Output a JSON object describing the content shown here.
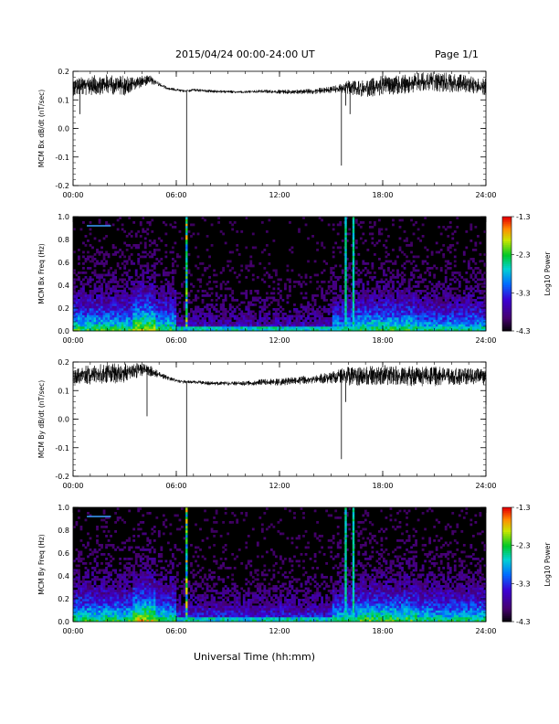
{
  "header": {
    "title": "2015/04/24  00:00-24:00 UT",
    "page": "Page 1/1"
  },
  "footer": {
    "xlabel": "Universal Time (hh:mm)"
  },
  "chart_data": [
    {
      "type": "line",
      "ylabel": "MCM Bx dB/dt (nT/sec)",
      "xlabel": "Universal Time (hh:mm)",
      "xlim": [
        0,
        24
      ],
      "ylim": [
        -0.2,
        0.2
      ],
      "x_ticks": [
        "00:00",
        "06:00",
        "12:00",
        "18:00",
        "24:00"
      ],
      "y_ticks": [
        "-0.2",
        "-0.1",
        "0.0",
        "0.1",
        "0.2"
      ],
      "series": [
        {
          "x": [
            0,
            1,
            2,
            3,
            4,
            4.5,
            5,
            5.5,
            6,
            6.5,
            7,
            8,
            9,
            10,
            11,
            12,
            13,
            14,
            15,
            15.5,
            16,
            16.5,
            17,
            18,
            19,
            20,
            21,
            22,
            23,
            24
          ],
          "y": [
            0.145,
            0.15,
            0.155,
            0.15,
            0.165,
            0.17,
            0.155,
            0.14,
            0.135,
            0.13,
            0.135,
            0.13,
            0.128,
            0.128,
            0.13,
            0.128,
            0.128,
            0.13,
            0.135,
            0.14,
            0.145,
            0.14,
            0.14,
            0.15,
            0.15,
            0.16,
            0.165,
            0.16,
            0.155,
            0.145
          ],
          "amplitude": [
            0.03,
            0.035,
            0.035,
            0.035,
            0.02,
            0.015,
            0.008,
            0.005,
            0.005,
            0.005,
            0.005,
            0.005,
            0.005,
            0.005,
            0.006,
            0.007,
            0.008,
            0.01,
            0.012,
            0.015,
            0.025,
            0.03,
            0.03,
            0.035,
            0.035,
            0.035,
            0.035,
            0.035,
            0.03,
            0.03
          ]
        }
      ],
      "spikes": [
        {
          "x": 6.6,
          "y": -0.2
        },
        {
          "x": 15.6,
          "y": -0.13
        },
        {
          "x": 15.85,
          "y": 0.08
        },
        {
          "x": 16.1,
          "y": 0.05
        },
        {
          "x": 0.4,
          "y": 0.05
        }
      ]
    },
    {
      "type": "heatmap",
      "ylabel": "MCM Bx Freq (Hz)",
      "colorbar_label": "Log10 Power",
      "xlim": [
        0,
        24
      ],
      "ylim": [
        0,
        1.0
      ],
      "x_ticks": [
        "00:00",
        "06:00",
        "12:00",
        "18:00",
        "24:00"
      ],
      "y_ticks": [
        "0.0",
        "0.2",
        "0.4",
        "0.6",
        "0.8",
        "1.0"
      ],
      "colorbar_ticks": [
        "-1.3",
        "-2.3",
        "-3.3",
        "-4.3"
      ],
      "clim": [
        -4.3,
        -1.3
      ],
      "vertical_bands": [
        6.6,
        15.85,
        16.3
      ],
      "horizontal_line": {
        "x": [
          0.8,
          2.2
        ],
        "y": 0.92
      },
      "activity": [
        {
          "x": [
            0,
            6
          ],
          "strength": 0.8
        },
        {
          "x": [
            6,
            15
          ],
          "strength": 0.35
        },
        {
          "x": [
            15,
            24
          ],
          "strength": 0.7
        }
      ]
    },
    {
      "type": "line",
      "ylabel": "MCM By dB/dt (nT/sec)",
      "xlabel": "Universal Time (hh:mm)",
      "xlim": [
        0,
        24
      ],
      "ylim": [
        -0.2,
        0.2
      ],
      "x_ticks": [
        "00:00",
        "06:00",
        "12:00",
        "18:00",
        "24:00"
      ],
      "y_ticks": [
        "-0.2",
        "-0.1",
        "0.0",
        "0.1",
        "0.2"
      ],
      "series": [
        {
          "x": [
            0,
            1,
            2,
            3,
            4,
            4.5,
            5,
            5.5,
            6,
            6.5,
            7,
            8,
            9,
            10,
            11,
            12,
            13,
            14,
            15,
            15.5,
            16,
            16.5,
            17,
            18,
            19,
            20,
            21,
            22,
            23,
            24
          ],
          "y": [
            0.15,
            0.155,
            0.16,
            0.16,
            0.175,
            0.17,
            0.155,
            0.145,
            0.135,
            0.13,
            0.13,
            0.125,
            0.125,
            0.125,
            0.13,
            0.13,
            0.135,
            0.14,
            0.145,
            0.15,
            0.15,
            0.15,
            0.15,
            0.155,
            0.15,
            0.15,
            0.15,
            0.15,
            0.15,
            0.145
          ],
          "amplitude": [
            0.03,
            0.035,
            0.035,
            0.035,
            0.025,
            0.02,
            0.01,
            0.008,
            0.006,
            0.006,
            0.006,
            0.007,
            0.007,
            0.008,
            0.01,
            0.012,
            0.014,
            0.015,
            0.02,
            0.025,
            0.035,
            0.035,
            0.035,
            0.035,
            0.035,
            0.035,
            0.035,
            0.03,
            0.03,
            0.03
          ]
        }
      ],
      "spikes": [
        {
          "x": 6.6,
          "y": -0.2
        },
        {
          "x": 15.6,
          "y": -0.14
        },
        {
          "x": 4.3,
          "y": 0.01
        },
        {
          "x": 15.85,
          "y": 0.06
        },
        {
          "x": 24,
          "y": 0.05
        }
      ]
    },
    {
      "type": "heatmap",
      "ylabel": "MCM By Freq (Hz)",
      "colorbar_label": "Log10 Power",
      "xlim": [
        0,
        24
      ],
      "ylim": [
        0,
        1.0
      ],
      "x_ticks": [
        "00:00",
        "06:00",
        "12:00",
        "18:00",
        "24:00"
      ],
      "y_ticks": [
        "0.0",
        "0.2",
        "0.4",
        "0.6",
        "0.8",
        "1.0"
      ],
      "colorbar_ticks": [
        "-1.3",
        "-2.3",
        "-3.3",
        "-4.3"
      ],
      "clim": [
        -4.3,
        -1.3
      ],
      "vertical_bands": [
        6.6,
        15.85,
        16.3
      ],
      "horizontal_line": {
        "x": [
          0.8,
          2.2
        ],
        "y": 0.92
      },
      "activity": [
        {
          "x": [
            0,
            6
          ],
          "strength": 0.8
        },
        {
          "x": [
            6,
            15
          ],
          "strength": 0.45
        },
        {
          "x": [
            15,
            24
          ],
          "strength": 0.75
        }
      ]
    }
  ]
}
